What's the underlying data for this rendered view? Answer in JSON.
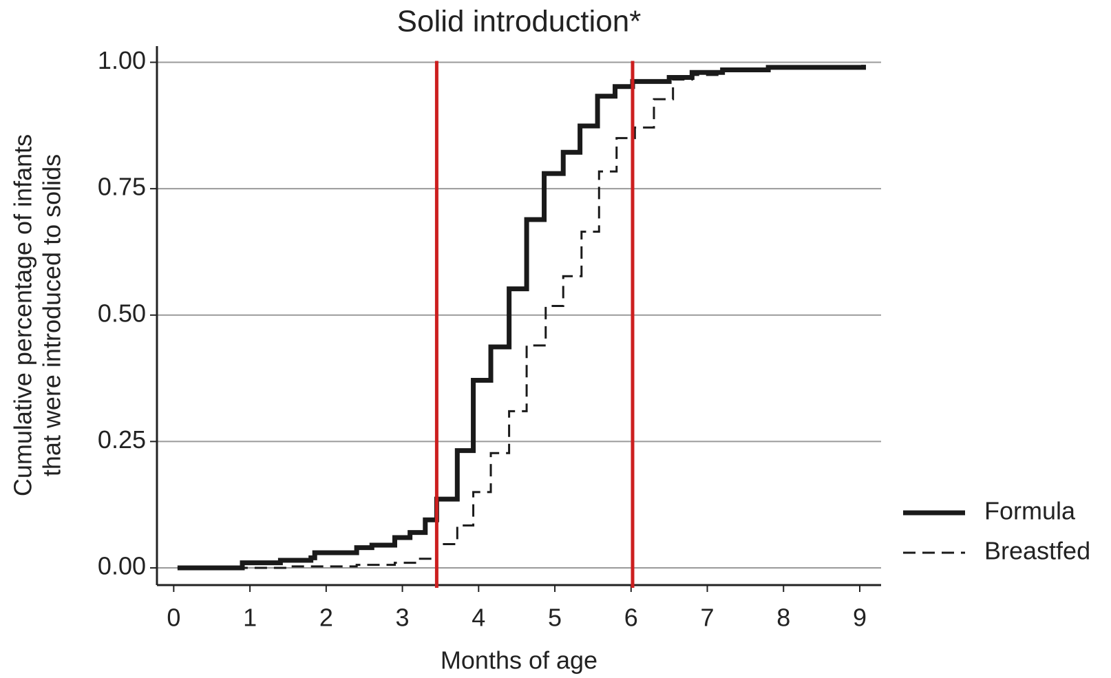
{
  "chart_data": {
    "type": "line",
    "step": "post",
    "title": "Solid introduction*",
    "xlabel": "Months of age",
    "ylabel": [
      "Cumulative percentage of infants",
      "that were introduced to solids"
    ],
    "xlim": [
      -0.22,
      9.28
    ],
    "ylim": [
      -0.034,
      1.032
    ],
    "xticks": [
      0,
      1,
      2,
      3,
      4,
      5,
      6,
      7,
      8,
      9
    ],
    "yticks": [
      {
        "value": 0,
        "label": "0.00"
      },
      {
        "value": 0.25,
        "label": "0.25"
      },
      {
        "value": 0.5,
        "label": "0.50"
      },
      {
        "value": 0.75,
        "label": "0.75"
      },
      {
        "value": 1,
        "label": "1.00"
      }
    ],
    "grid": true,
    "vlines": [
      3.45,
      6.02
    ],
    "vline_color": "#cc1f1f",
    "legend": "right",
    "series": [
      {
        "name": "Formula",
        "color": "#1a1a1a",
        "dash": "solid",
        "x": [
          0.05,
          0.9,
          1.4,
          1.8,
          1.85,
          2.4,
          2.6,
          2.9,
          3.1,
          3.3,
          3.45,
          3.72,
          3.93,
          4.16,
          4.4,
          4.63,
          4.86,
          5.11,
          5.33,
          5.56,
          5.79,
          6.02,
          6.5,
          6.8,
          7.2,
          7.8,
          9.05
        ],
        "values": [
          0,
          0.01,
          0.015,
          0.02,
          0.03,
          0.04,
          0.045,
          0.06,
          0.07,
          0.095,
          0.136,
          0.232,
          0.371,
          0.437,
          0.552,
          0.689,
          0.78,
          0.822,
          0.874,
          0.933,
          0.952,
          0.962,
          0.97,
          0.98,
          0.985,
          0.99,
          0.995
        ]
      },
      {
        "name": "Breastfed",
        "color": "#1a1a1a",
        "dash": "dashed",
        "x": [
          0.05,
          1.5,
          2.4,
          2.9,
          3.2,
          3.45,
          3.72,
          3.93,
          4.16,
          4.4,
          4.63,
          4.88,
          5.11,
          5.35,
          5.58,
          5.81,
          6.05,
          6.3,
          6.55,
          6.8,
          7.2,
          7.8,
          9.05
        ],
        "values": [
          0,
          0.003,
          0.006,
          0.01,
          0.018,
          0.047,
          0.084,
          0.15,
          0.227,
          0.31,
          0.44,
          0.518,
          0.577,
          0.665,
          0.784,
          0.85,
          0.871,
          0.927,
          0.966,
          0.975,
          0.985,
          0.99,
          0.995
        ]
      }
    ]
  }
}
